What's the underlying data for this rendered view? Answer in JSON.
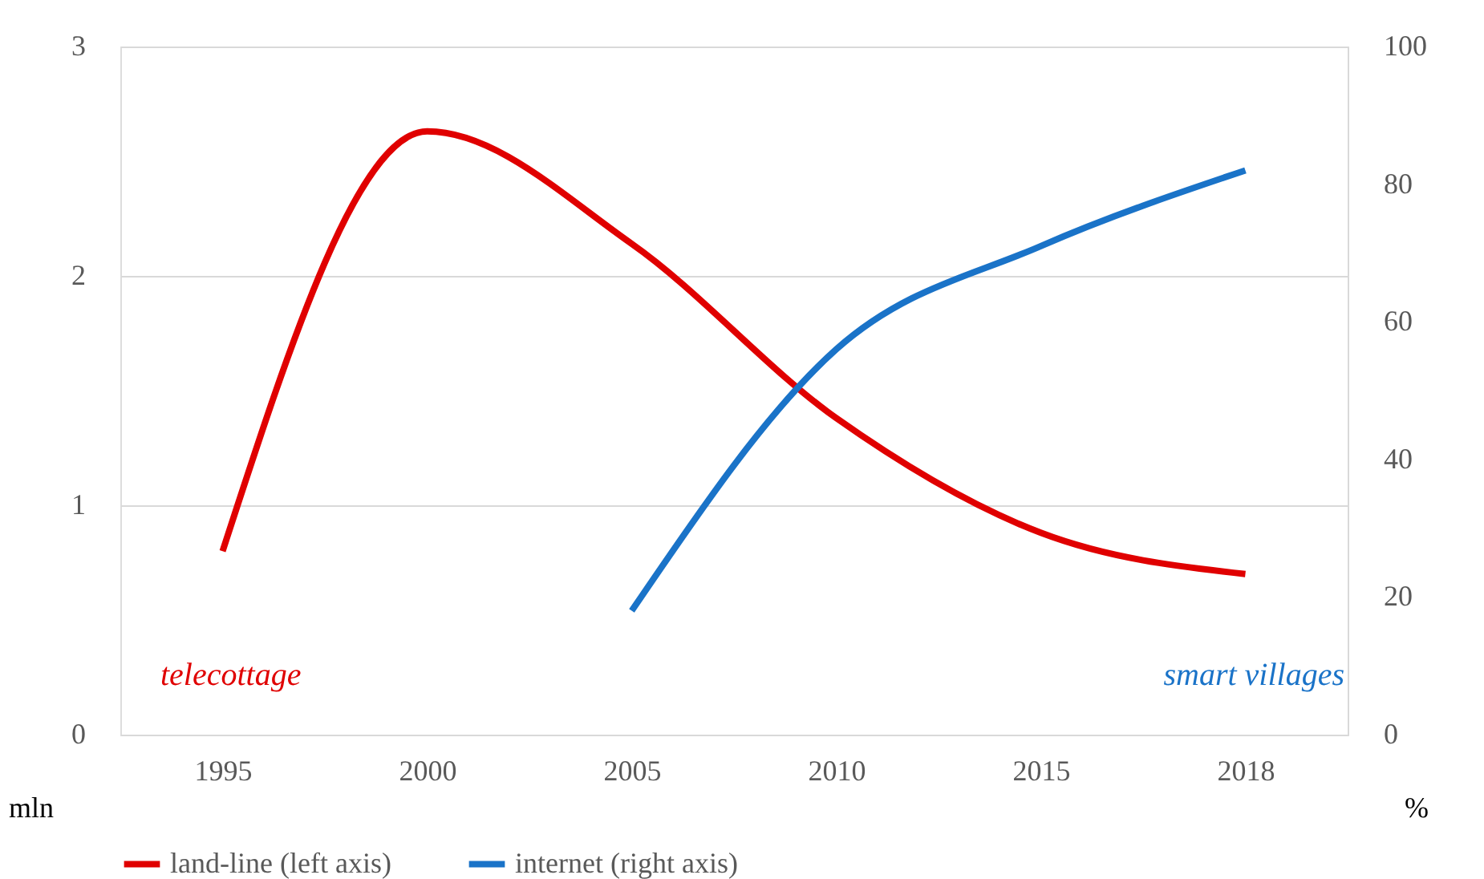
{
  "chart_data": {
    "type": "line",
    "categories": [
      "1995",
      "2000",
      "2005",
      "2010",
      "2015",
      "2018"
    ],
    "series": [
      {
        "name": "land-line (left axis)",
        "color": "#e00000",
        "values": [
          0.8,
          2.63,
          2.14,
          1.38,
          0.88,
          0.7
        ]
      },
      {
        "name": "internet (right axis)",
        "color": "#1a73c8",
        "axis": "y2",
        "values": [
          null,
          null,
          18,
          56,
          71,
          82
        ]
      }
    ],
    "ylim": [
      0,
      3
    ],
    "yticks": [
      0,
      1,
      2,
      3
    ],
    "y2lim": [
      0,
      100
    ],
    "y2ticks": [
      0,
      20,
      40,
      60,
      80,
      100
    ],
    "ylabel": "mln",
    "y2label": "%",
    "annotations": [
      "telecottage",
      "smart villages"
    ],
    "grid": "y",
    "legend": "bottom",
    "marker": "none",
    "line_style": "solid"
  }
}
